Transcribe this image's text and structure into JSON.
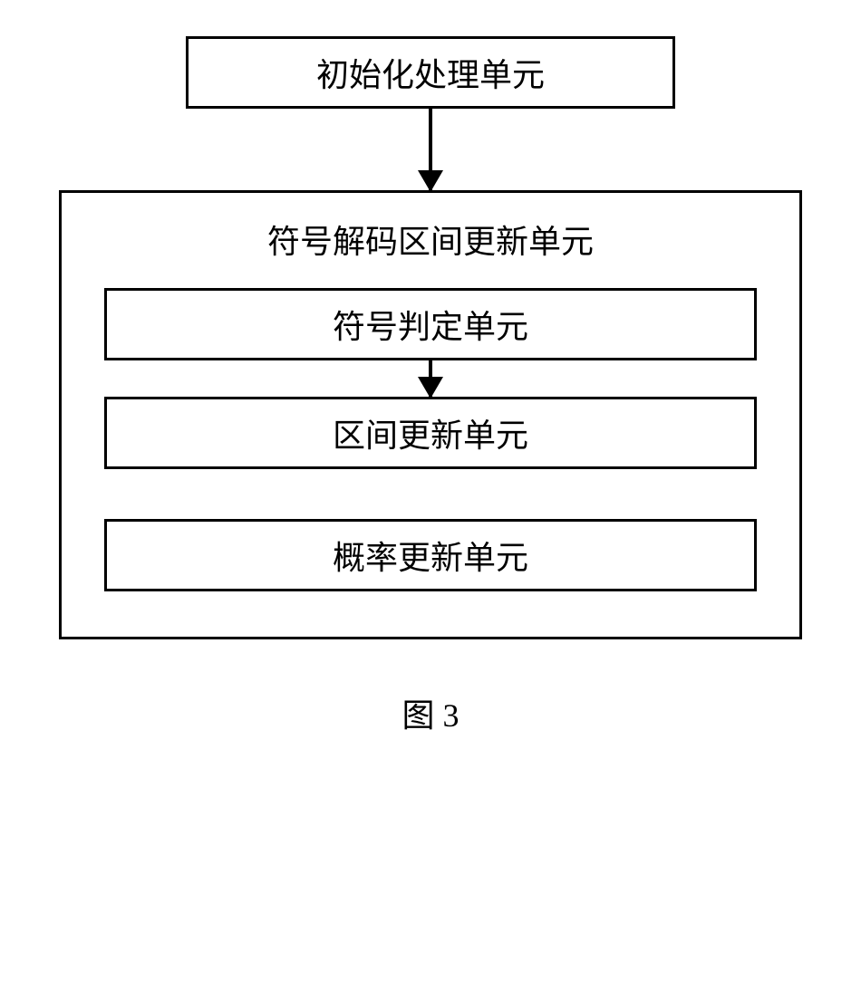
{
  "diagram": {
    "topBox": "初始化处理单元",
    "groupTitle": "符号解码区间更新单元",
    "innerBoxes": [
      "符号判定单元",
      "区间更新单元",
      "概率更新单元"
    ],
    "figureLabel": "图 3",
    "style": {
      "borderColor": "#000000",
      "background": "#ffffff",
      "fontSize": 36,
      "topBoxWidth": 540,
      "outerGroupWidth": 820,
      "innerBoxWidth": 720,
      "boxHeight": 80
    }
  }
}
